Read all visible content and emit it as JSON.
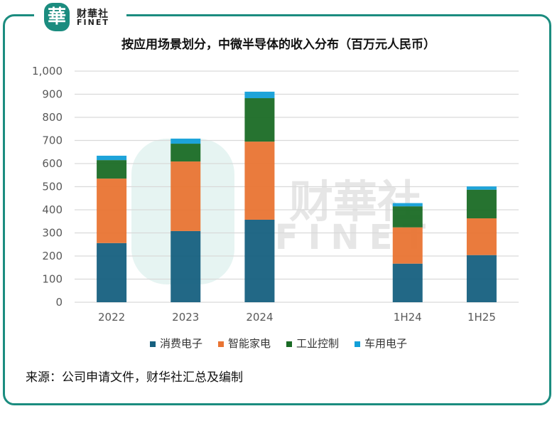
{
  "brand": {
    "name_cn": "财華社",
    "name_en": "FINET",
    "badge": "華",
    "accent": "#1b8c7f"
  },
  "source": "来源：公司申请文件，财华社汇总及编制",
  "chart_data": {
    "type": "bar",
    "stacked": true,
    "title": "按应用场景划分，中微半导体的收入分布（百万元人民币）",
    "categories": [
      "2022",
      "2023",
      "2024",
      "",
      "1H24",
      "1H25"
    ],
    "series": [
      {
        "name": "消费电子",
        "color": "#16607f",
        "values": [
          256,
          308,
          357,
          null,
          167,
          204
        ]
      },
      {
        "name": "智能家电",
        "color": "#e97433",
        "values": [
          279,
          301,
          338,
          null,
          157,
          159
        ]
      },
      {
        "name": "工业控制",
        "color": "#1a6b25",
        "values": [
          80,
          77,
          188,
          null,
          91,
          124
        ]
      },
      {
        "name": "车用电子",
        "color": "#129fd8",
        "values": [
          19,
          22,
          28,
          null,
          14,
          14
        ]
      }
    ],
    "ylim": [
      0,
      1000
    ],
    "yticks": [
      0,
      100,
      200,
      300,
      400,
      500,
      600,
      700,
      800,
      900,
      1000
    ],
    "ytick_labels": [
      "0",
      "100",
      "200",
      "300",
      "400",
      "500",
      "600",
      "700",
      "800",
      "900",
      "1,000"
    ],
    "grid": true,
    "legend_position": "bottom"
  }
}
